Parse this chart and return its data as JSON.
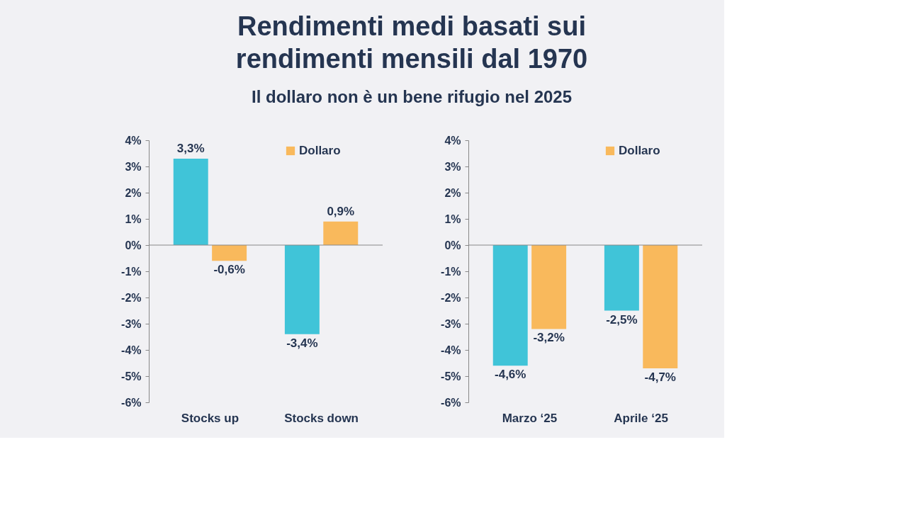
{
  "chart_data": [
    {
      "type": "bar",
      "title": "Rendimenti medi basati sui rendimenti mensili dal 1970",
      "subtitle": "Il dollaro non è un bene rifugio nel 2025",
      "categories": [
        "Stocks up",
        "Stocks down"
      ],
      "series": [
        {
          "color": "#40c4d8",
          "values": [
            3.3,
            -3.4
          ],
          "value_labels": [
            "3,3%",
            "-3,4%"
          ]
        },
        {
          "name": "Dollaro",
          "color": "#f9b95c",
          "values": [
            -0.6,
            0.9
          ],
          "value_labels": [
            "-0,6%",
            "0,9%"
          ]
        }
      ],
      "ylim": [
        -6,
        4
      ],
      "yticks": [
        {
          "value": -6,
          "label": "-6%"
        },
        {
          "value": -5,
          "label": "-5%"
        },
        {
          "value": -4,
          "label": "-4%"
        },
        {
          "value": -3,
          "label": "-3%"
        },
        {
          "value": -2,
          "label": "-2%"
        },
        {
          "value": -1,
          "label": "-1%"
        },
        {
          "value": 0,
          "label": "0%"
        },
        {
          "value": 1,
          "label": "1%"
        },
        {
          "value": 2,
          "label": "2%"
        },
        {
          "value": 3,
          "label": "3%"
        },
        {
          "value": 4,
          "label": "4%"
        }
      ],
      "ref_lines": [
        {
          "axis": "y",
          "value": 0,
          "color": "#888888"
        }
      ],
      "legend": "top right",
      "grid": false
    },
    {
      "type": "bar",
      "categories": [
        "Marzo ‘25",
        "Aprile ‘25"
      ],
      "series": [
        {
          "color": "#40c4d8",
          "values": [
            -4.6,
            -2.5
          ],
          "value_labels": [
            "-4,6%",
            "-2,5%"
          ]
        },
        {
          "name": "Dollaro",
          "color": "#f9b95c",
          "values": [
            -3.2,
            -4.7
          ],
          "value_labels": [
            "-3,2%",
            "-4,7%"
          ]
        }
      ],
      "ylim": [
        -6,
        4
      ],
      "yticks": [
        {
          "value": -6,
          "label": "-6%"
        },
        {
          "value": -5,
          "label": "-5%"
        },
        {
          "value": -4,
          "label": "-4%"
        },
        {
          "value": -3,
          "label": "-3%"
        },
        {
          "value": -2,
          "label": "-2%"
        },
        {
          "value": -1,
          "label": "-1%"
        },
        {
          "value": 0,
          "label": "0%"
        },
        {
          "value": 1,
          "label": "1%"
        },
        {
          "value": 2,
          "label": "2%"
        },
        {
          "value": 3,
          "label": "3%"
        },
        {
          "value": 4,
          "label": "4%"
        }
      ],
      "ref_lines": [
        {
          "axis": "y",
          "value": 0,
          "color": "#888888"
        }
      ],
      "legend": "top right",
      "grid": false
    }
  ]
}
